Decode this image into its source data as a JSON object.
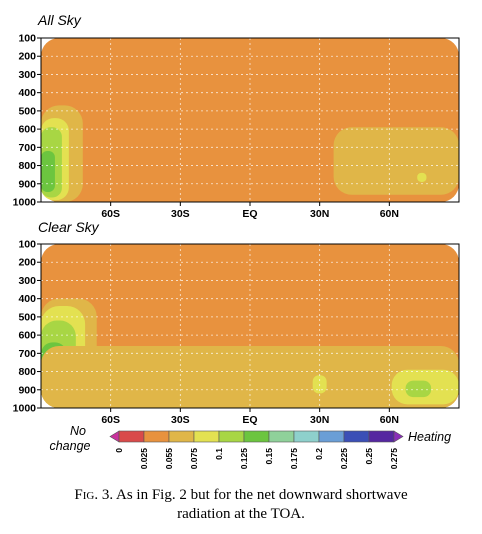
{
  "chart_data": [
    {
      "type": "heatmap",
      "title": "All Sky",
      "x_tick_labels": [
        "60S",
        "30S",
        "EQ",
        "30N",
        "60N"
      ],
      "y_tick_labels": [
        "100",
        "200",
        "300",
        "400",
        "500",
        "600",
        "700",
        "800",
        "900",
        "1000"
      ],
      "ylim": [
        100,
        1000
      ],
      "y_inverted": true,
      "xlim": [
        -90,
        90
      ],
      "x_ticks": [
        -60,
        -30,
        0,
        30,
        60
      ],
      "grid": "dashed",
      "regions": [
        {
          "lat": [
            -90,
            90
          ],
          "p": [
            100,
            1000
          ],
          "level": "0.025-0.055"
        },
        {
          "lat": [
            -90,
            -72
          ],
          "p": [
            470,
            1000
          ],
          "level": "0.055-0.075"
        },
        {
          "lat": [
            -90,
            -78
          ],
          "p": [
            540,
            990
          ],
          "level": "0.075-0.1"
        },
        {
          "lat": [
            -90,
            -81
          ],
          "p": [
            590,
            975
          ],
          "level": "0.1-0.125"
        },
        {
          "lat": [
            -90,
            -84
          ],
          "p": [
            720,
            945
          ],
          "level": "0.125-0.15"
        },
        {
          "lat": [
            36,
            90
          ],
          "p": [
            590,
            960
          ],
          "level": "0.055-0.075"
        },
        {
          "lat": [
            72,
            76
          ],
          "p": [
            840,
            890
          ],
          "level": "0.075-0.1"
        }
      ]
    },
    {
      "type": "heatmap",
      "title": "Clear Sky",
      "x_tick_labels": [
        "60S",
        "30S",
        "EQ",
        "30N",
        "60N"
      ],
      "y_tick_labels": [
        "100",
        "200",
        "300",
        "400",
        "500",
        "600",
        "700",
        "800",
        "900",
        "1000"
      ],
      "ylim": [
        100,
        1000
      ],
      "y_inverted": true,
      "xlim": [
        -90,
        90
      ],
      "x_ticks": [
        -60,
        -30,
        0,
        30,
        60
      ],
      "grid": "dashed",
      "regions": [
        {
          "lat": [
            -90,
            90
          ],
          "p": [
            100,
            1000
          ],
          "level": "0.025-0.055"
        },
        {
          "lat": [
            -90,
            -66
          ],
          "p": [
            400,
            1000
          ],
          "level": "0.055-0.075"
        },
        {
          "lat": [
            -90,
            -71
          ],
          "p": [
            440,
            985
          ],
          "level": "0.075-0.1"
        },
        {
          "lat": [
            -90,
            -75
          ],
          "p": [
            520,
            975
          ],
          "level": "0.1-0.125"
        },
        {
          "lat": [
            -90,
            -79
          ],
          "p": [
            640,
            960
          ],
          "level": "0.125-0.15"
        },
        {
          "lat": [
            -90,
            -82
          ],
          "p": [
            740,
            945
          ],
          "level": "0.15-0.175"
        },
        {
          "lat": [
            -90,
            90
          ],
          "p": [
            660,
            1000
          ],
          "level": "0.055-0.075"
        },
        {
          "lat": [
            27,
            33
          ],
          "p": [
            820,
            920
          ],
          "level": "0.075-0.1"
        },
        {
          "lat": [
            61,
            90
          ],
          "p": [
            790,
            980
          ],
          "level": "0.075-0.1"
        },
        {
          "lat": [
            67,
            78
          ],
          "p": [
            850,
            940
          ],
          "level": "0.1-0.125"
        }
      ]
    }
  ],
  "colorbar": {
    "left_label": "No change",
    "right_label": "Heating",
    "ticks": [
      "0",
      "0.025",
      "0.055",
      "0.075",
      "0.1",
      "0.125",
      "0.15",
      "0.175",
      "0.2",
      "0.225",
      "0.25",
      "0.275"
    ],
    "colors": [
      "#c8329c",
      "#d94a4a",
      "#e8923e",
      "#e0b648",
      "#e3e151",
      "#a8d644",
      "#6cc53f",
      "#8fd19a",
      "#8ed0cc",
      "#6a9ed6",
      "#3b4fb6",
      "#5527a0",
      "#8a2db8"
    ]
  },
  "caption": {
    "fig_label": "Fig. 3.",
    "line1": " As in Fig. 2 but for the net downward shortwave",
    "line2": "radiation at the TOA."
  }
}
